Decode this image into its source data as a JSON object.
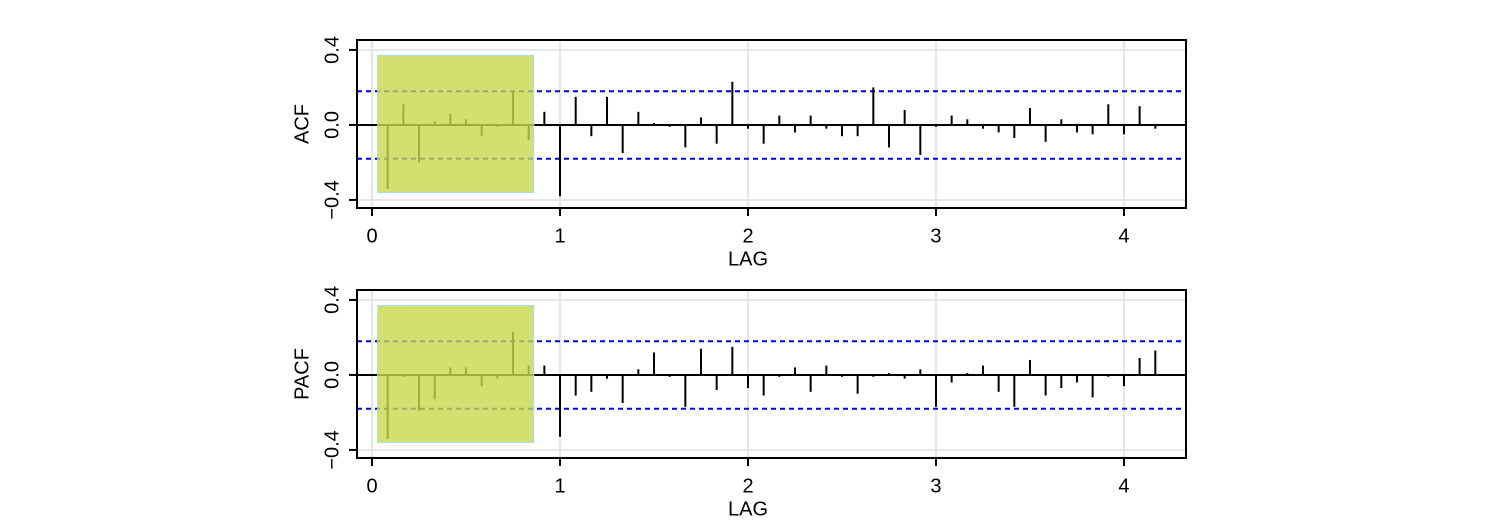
{
  "chart_data": [
    {
      "type": "acf",
      "ylabel": "ACF",
      "xlabel": "LAG",
      "x": [
        0.0833,
        0.1667,
        0.25,
        0.3333,
        0.4167,
        0.5,
        0.5833,
        0.6667,
        0.75,
        0.8333,
        0.9167,
        1,
        1.0833,
        1.1667,
        1.25,
        1.3333,
        1.4167,
        1.5,
        1.5833,
        1.6667,
        1.75,
        1.8333,
        1.9167,
        2,
        2.0833,
        2.1667,
        2.25,
        2.3333,
        2.4167,
        2.5,
        2.5833,
        2.6667,
        2.75,
        2.8333,
        2.9167,
        3,
        3.0833,
        3.1667,
        3.25,
        3.3333,
        3.4167,
        3.5,
        3.5833,
        3.6667,
        3.75,
        3.8333,
        3.9167,
        4,
        4.0833,
        4.1667
      ],
      "values": [
        -0.34,
        0.11,
        -0.2,
        0.02,
        0.06,
        0.03,
        -0.06,
        -0.01,
        0.18,
        -0.08,
        0.07,
        -0.38,
        0.15,
        -0.06,
        0.15,
        -0.15,
        0.07,
        0.01,
        -0.01,
        -0.12,
        0.04,
        -0.1,
        0.23,
        -0.02,
        -0.1,
        0.05,
        -0.04,
        0.05,
        -0.02,
        -0.06,
        -0.06,
        0.2,
        -0.12,
        0.08,
        -0.16,
        -0.01,
        0.05,
        0.03,
        -0.02,
        -0.04,
        -0.07,
        0.09,
        -0.09,
        0.03,
        -0.04,
        -0.05,
        0.11,
        -0.05,
        0.1,
        -0.02
      ],
      "color": "#000000",
      "confidence_bounds": [
        -0.18,
        0.18
      ],
      "bound_color": "#0000ee",
      "xlim": [
        -0.08,
        4.33
      ],
      "ylim": [
        -0.443,
        0.453
      ],
      "xticks": [
        0,
        1,
        2,
        3,
        4
      ],
      "yticks": [
        {
          "value": -0.4,
          "label": "−0.4"
        },
        {
          "value": 0,
          "label": "0.0"
        },
        0.4
      ],
      "grid": true,
      "highlight": {
        "xlim": [
          0.03,
          0.86
        ],
        "ylim": [
          -0.36,
          0.37
        ],
        "color": "#c5d84a"
      }
    },
    {
      "type": "acf",
      "ylabel": "PACF",
      "xlabel": "LAG",
      "x": [
        0.0833,
        0.1667,
        0.25,
        0.3333,
        0.4167,
        0.5,
        0.5833,
        0.6667,
        0.75,
        0.8333,
        0.9167,
        1,
        1.0833,
        1.1667,
        1.25,
        1.3333,
        1.4167,
        1.5,
        1.5833,
        1.6667,
        1.75,
        1.8333,
        1.9167,
        2,
        2.0833,
        2.1667,
        2.25,
        2.3333,
        2.4167,
        2.5,
        2.5833,
        2.6667,
        2.75,
        2.8333,
        2.9167,
        3,
        3.0833,
        3.1667,
        3.25,
        3.3333,
        3.4167,
        3.5,
        3.5833,
        3.6667,
        3.75,
        3.8333,
        3.9167,
        4,
        4.0833,
        4.1667
      ],
      "values": [
        -0.34,
        -0.01,
        -0.19,
        -0.13,
        0.04,
        0.04,
        -0.06,
        -0.02,
        0.23,
        0.05,
        0.05,
        -0.33,
        -0.11,
        -0.09,
        -0.02,
        -0.15,
        0.03,
        0.12,
        -0.01,
        -0.17,
        0.14,
        -0.08,
        0.15,
        -0.07,
        -0.11,
        -0.01,
        0.04,
        -0.09,
        0.05,
        -0.01,
        -0.1,
        -0.01,
        0.01,
        -0.02,
        0.03,
        -0.17,
        -0.04,
        0.01,
        0.05,
        -0.09,
        -0.17,
        0.08,
        -0.11,
        -0.07,
        -0.04,
        -0.12,
        -0.01,
        -0.06,
        0.09,
        0.13
      ],
      "color": "#000000",
      "confidence_bounds": [
        -0.18,
        0.18
      ],
      "bound_color": "#0000ee",
      "xlim": [
        -0.08,
        4.33
      ],
      "ylim": [
        -0.443,
        0.453
      ],
      "xticks": [
        0,
        1,
        2,
        3,
        4
      ],
      "yticks": [
        {
          "value": -0.4,
          "label": "−0.4"
        },
        {
          "value": 0,
          "label": "0.0"
        },
        0.4
      ],
      "grid": true,
      "highlight": {
        "xlim": [
          0.03,
          0.86
        ],
        "ylim": [
          -0.36,
          0.37
        ],
        "color": "#c5d84a"
      }
    }
  ]
}
